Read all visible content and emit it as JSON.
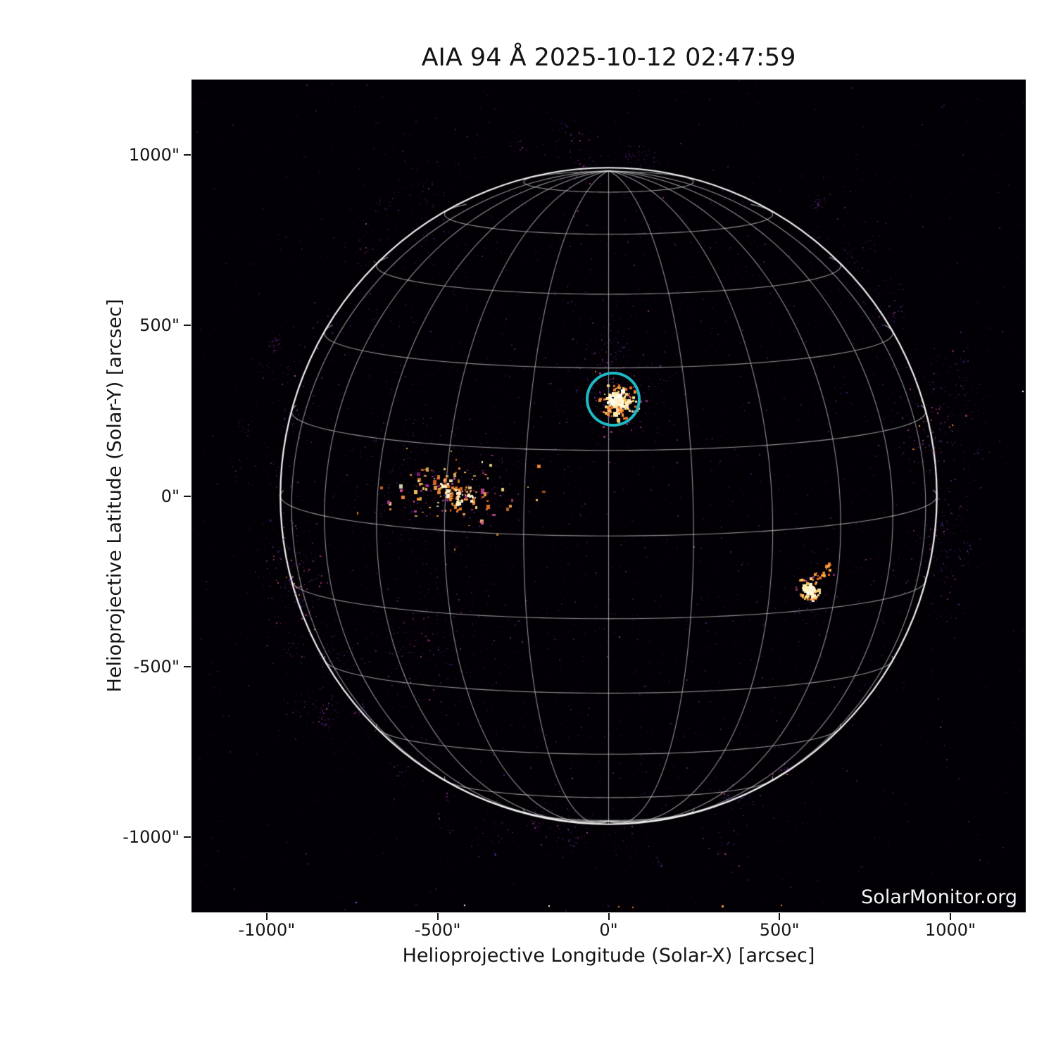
{
  "title": "AIA 94 Å 2025-10-12 02:47:59",
  "watermark": "SolarMonitor.org",
  "axes": {
    "x_label": "Helioprojective Longitude (Solar-X) [arcsec]",
    "y_label": "Helioprojective Latitude (Solar-Y) [arcsec]",
    "x_ticks": [
      {
        "value": -1000,
        "label": "-1000\""
      },
      {
        "value": -500,
        "label": "-500\""
      },
      {
        "value": 0,
        "label": "0\""
      },
      {
        "value": 500,
        "label": "500\""
      },
      {
        "value": 1000,
        "label": "1000\""
      }
    ],
    "y_ticks": [
      {
        "value": 1000,
        "label": "1000\""
      },
      {
        "value": 500,
        "label": "500\""
      },
      {
        "value": 0,
        "label": "0\""
      },
      {
        "value": -500,
        "label": "-500\""
      },
      {
        "value": -1000,
        "label": "-1000\""
      }
    ]
  },
  "chart_data": {
    "type": "heatmap",
    "title": "AIA 94 Å 2025-10-12 02:47:59",
    "instrument": "AIA",
    "wavelength_angstrom": 94,
    "datetime": "2025-10-12 02:47:59",
    "xlabel": "Helioprojective Longitude (Solar-X) [arcsec]",
    "ylabel": "Helioprojective Latitude (Solar-Y) [arcsec]",
    "xlim": [
      -1220,
      1220
    ],
    "ylim": [
      -1220,
      1220
    ],
    "x_tick_values": [
      -1000,
      -500,
      0,
      500,
      1000
    ],
    "y_tick_values": [
      1000,
      500,
      0,
      -500,
      -1000
    ],
    "grid": true,
    "solar_disk": {
      "radius_arcsec": 960,
      "b0_deg": 7,
      "grid_spacing_deg": 15
    },
    "annotation_circle": {
      "x_arcsec": 14,
      "y_arcsec": 284,
      "radius_arcsec": 72,
      "color": "#1eb9c3"
    },
    "active_regions": [
      {
        "id": "AR-disk-center-flaring",
        "style": "bright-core",
        "x": 21,
        "y": 282,
        "size": 1.0,
        "features": [
          {
            "type": "curl",
            "x": 70,
            "y": 266,
            "r": 9
          },
          {
            "type": "blob",
            "x": 2,
            "y": 250
          },
          {
            "type": "blob",
            "x": 38,
            "y": 246
          }
        ]
      },
      {
        "id": "AR-east-scattered",
        "style": "scattered",
        "x": -455,
        "y": 10,
        "sx": 95,
        "sy": 50,
        "subspots": [
          {
            "x": -484,
            "y": 40
          },
          {
            "x": -472,
            "y": 8
          },
          {
            "x": -438,
            "y": 14
          },
          {
            "x": -404,
            "y": 2
          },
          {
            "x": -442,
            "y": -16
          }
        ]
      },
      {
        "id": "AR-southwest-compact",
        "style": "bright-core",
        "x": 585,
        "y": -272,
        "size": 0.62,
        "features": [
          {
            "type": "bar",
            "x": 588,
            "y": -276,
            "w": 40,
            "h": 9
          },
          {
            "type": "arc",
            "x": 585,
            "y": -282,
            "r": 13
          },
          {
            "type": "blob",
            "x": 637,
            "y": -206
          },
          {
            "type": "blob",
            "x": 615,
            "y": -236
          }
        ]
      },
      {
        "id": "diffuse-southeast-quadrant",
        "style": "diffuse",
        "x": -540,
        "y": -408,
        "sx": 95,
        "sy": 100,
        "n": 280
      },
      {
        "id": "diffuse-around-center-AR",
        "style": "diffuse",
        "x": 30,
        "y": 305,
        "sx": 95,
        "sy": 85,
        "n": 210
      },
      {
        "id": "diffuse-east-AR-fringe",
        "style": "diffuse",
        "x": -520,
        "y": 55,
        "sx": 145,
        "sy": 115,
        "n": 300
      },
      {
        "id": "east-limb-specks",
        "style": "limb-specks",
        "x": -915,
        "y": -235,
        "sx": 45,
        "sy": 90,
        "n": 160
      },
      {
        "id": "west-limb-upper-specks",
        "style": "limb-specks",
        "x": 950,
        "y": 195,
        "sx": 50,
        "sy": 85,
        "n": 170
      },
      {
        "id": "west-limb-mid-diffuse",
        "style": "diffuse",
        "x": 960,
        "y": -200,
        "sx": 40,
        "sy": 80,
        "n": 130
      },
      {
        "id": "faint-north-center",
        "style": "diffuse",
        "x": -2,
        "y": 425,
        "sx": 35,
        "sy": 60,
        "n": 100
      }
    ],
    "edge_dots": [
      {
        "x": -424,
        "y": -1197,
        "color": "#ffffff",
        "s": 2
      },
      {
        "x": -177,
        "y": -1200,
        "color": "#fbf3e2",
        "s": 2
      },
      {
        "x": 27,
        "y": -1202,
        "color": "#f87d2a",
        "s": 2
      },
      {
        "x": 68,
        "y": -1204,
        "color": "#f87d2a",
        "s": 2
      },
      {
        "x": 330,
        "y": -1200,
        "color": "#fa9e3c",
        "s": 3
      },
      {
        "x": 503,
        "y": -1198,
        "color": "#f87d2a",
        "s": 2
      },
      {
        "x": -740,
        "y": -1190,
        "color": "#8a5adf",
        "s": 2
      },
      {
        "x": 1176,
        "y": -1192,
        "color": "#5c6fd4",
        "s": 2
      },
      {
        "x": 1210,
        "y": 308,
        "color": "#ffffff",
        "s": 2
      }
    ],
    "palette": {
      "background": "#020004",
      "grid": "#e8e8e8",
      "limb": "#ffffff",
      "blue": "#3947a8",
      "magenta": "#a23193",
      "cream": "#fff3c9",
      "purples": [
        "#1c0930",
        "#2f1150",
        "#3f1a6e",
        "#52228c",
        "#65309f",
        "#2a1343"
      ],
      "pinks": [
        "#b03392",
        "#cc4497",
        "#e2589c",
        "#94288c"
      ],
      "oranges": [
        "#ef7327",
        "#fb8c35",
        "#fca648"
      ],
      "yellows": [
        "#fdc961",
        "#fee08b"
      ]
    }
  }
}
